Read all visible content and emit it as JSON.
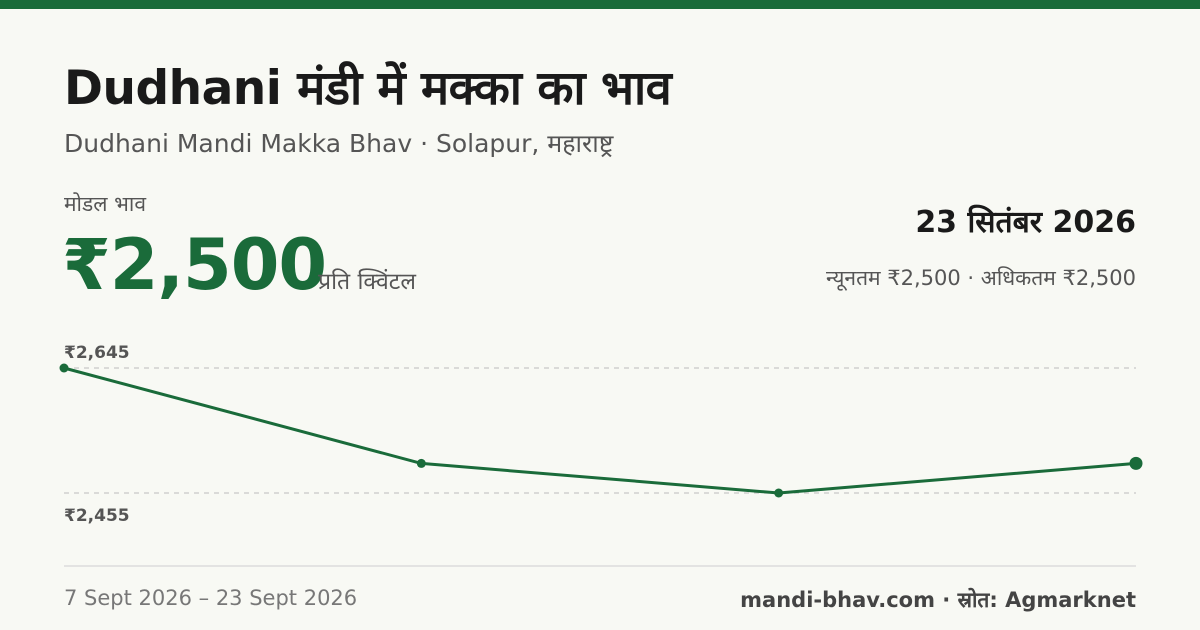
{
  "header": {
    "title": "Dudhani मंडी में मक्का का भाव",
    "subtitle": "Dudhani Mandi Makka Bhav · Solapur, महाराष्ट्र"
  },
  "price": {
    "label": "मोडल भाव",
    "value": "₹2,500",
    "unit": "प्रति क्विंटल"
  },
  "summary": {
    "date": "23 सितंबर 2026",
    "range": "न्यूनतम ₹2,500 · अधिकतम ₹2,500"
  },
  "chart_data": {
    "type": "line",
    "x": [
      "7 Sept 2026",
      "",
      "",
      "23 Sept 2026"
    ],
    "series": [
      {
        "values": [
          2645,
          2500,
          2455,
          2500
        ]
      }
    ],
    "reference_lines": [
      {
        "value": 2645,
        "label": "₹2,645"
      },
      {
        "value": 2455,
        "label": "₹2,455"
      }
    ],
    "ylim": [
      2455,
      2645
    ],
    "grid": false,
    "color": "#1a6b3a"
  },
  "footer": {
    "date_range": "7 Sept 2026 – 23 Sept 2026",
    "source": "mandi-bhav.com · स्रोत: Agmarknet"
  },
  "colors": {
    "accent": "#1a6b3a",
    "background": "#f8f9f4"
  }
}
